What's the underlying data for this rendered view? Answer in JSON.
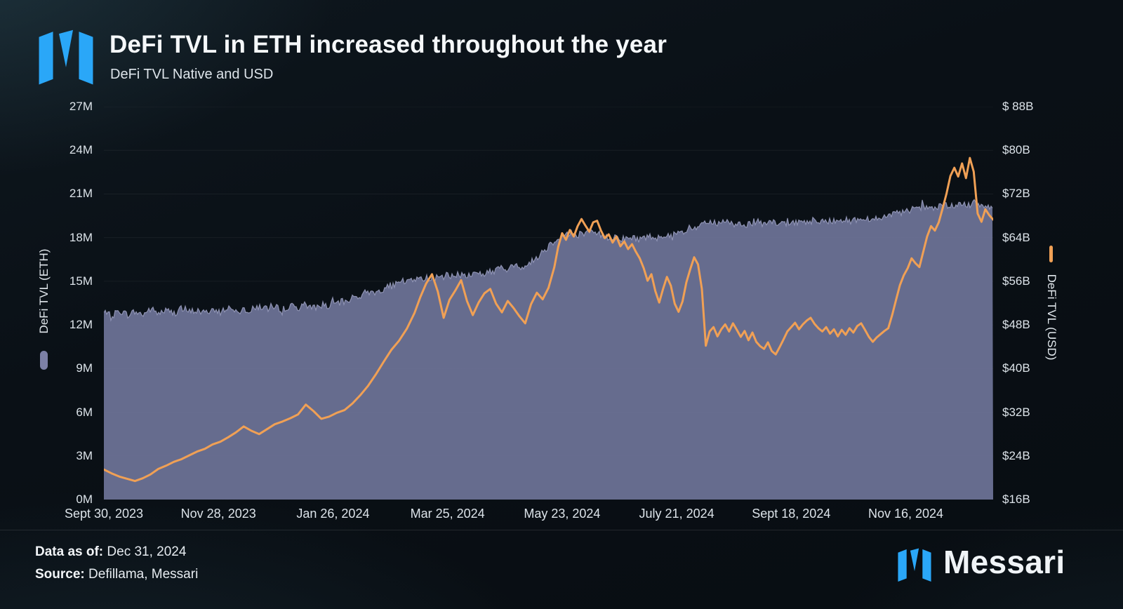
{
  "header": {
    "title": "DeFi TVL in ETH increased throughout the year",
    "subtitle": "DeFi TVL Native and USD"
  },
  "footer": {
    "data_as_of_label": "Data as of:",
    "data_as_of_value": " Dec 31, 2024",
    "source_label": "Source:",
    "source_value": " Defillama, Messari",
    "brand_wordmark": "Messari"
  },
  "colors": {
    "background": "#0a1016",
    "brand_blue": "#2aa7f8",
    "eth_area": "#6f7499",
    "eth_edge": "#a2a6c8",
    "usd_line": "#f0a055",
    "text": "#e9eef3"
  },
  "chart_data": {
    "type": "area+line, dual axis",
    "title": "DeFi TVL in ETH increased throughout the year",
    "subtitle": "DeFi TVL Native and USD",
    "grid": "horizontal, faint",
    "x_domain_days": [
      0,
      458
    ],
    "x_tick_days": [
      0,
      59,
      118,
      177,
      236,
      295,
      354,
      413
    ],
    "x_tick_labels": [
      "Sept 30, 2023",
      "Nov 28, 2023",
      "Jan 26, 2024",
      "Mar 25, 2024",
      "May 23, 2024",
      "July 21, 2024",
      "Sept 18, 2024",
      "Nov 16, 2024"
    ],
    "left_axis": {
      "label": "DeFi TVL (ETH)",
      "unit": "millions ETH",
      "min": 0,
      "max": 27,
      "ticks": [
        "27M",
        "24M",
        "21M",
        "18M",
        "15M",
        "12M",
        "9M",
        "6M",
        "3M",
        "0M"
      ]
    },
    "right_axis": {
      "label": "DeFi TVL (USD)",
      "unit": "billions USD",
      "min": 16,
      "max": 88,
      "ticks": [
        "$ 88B",
        "$80B",
        "$72B",
        "$64B",
        "$56B",
        "$48B",
        "$40B",
        "$32B",
        "$24B",
        "$16B"
      ]
    },
    "series": [
      {
        "name": "DeFi TVL (ETH)",
        "type": "area",
        "axis": "left",
        "color": "#6f7499",
        "edge_color": "#a2a6c8",
        "points": [
          [
            0,
            12.8
          ],
          [
            4,
            12.6
          ],
          [
            8,
            13.0
          ],
          [
            12,
            12.7
          ],
          [
            16,
            12.9
          ],
          [
            20,
            12.7
          ],
          [
            24,
            13.1
          ],
          [
            28,
            12.8
          ],
          [
            32,
            13.0
          ],
          [
            36,
            12.8
          ],
          [
            40,
            13.1
          ],
          [
            44,
            12.9
          ],
          [
            48,
            13.0
          ],
          [
            52,
            12.8
          ],
          [
            56,
            13.1
          ],
          [
            60,
            12.9
          ],
          [
            64,
            13.2
          ],
          [
            68,
            13.0
          ],
          [
            72,
            13.1
          ],
          [
            76,
            13.0
          ],
          [
            80,
            13.3
          ],
          [
            84,
            13.1
          ],
          [
            88,
            13.2
          ],
          [
            92,
            13.1
          ],
          [
            96,
            13.3
          ],
          [
            100,
            13.2
          ],
          [
            104,
            13.4
          ],
          [
            108,
            13.2
          ],
          [
            112,
            13.4
          ],
          [
            116,
            13.3
          ],
          [
            120,
            13.5
          ],
          [
            124,
            13.6
          ],
          [
            128,
            13.9
          ],
          [
            132,
            14.0
          ],
          [
            136,
            14.3
          ],
          [
            140,
            14.2
          ],
          [
            144,
            14.5
          ],
          [
            148,
            14.7
          ],
          [
            152,
            14.8
          ],
          [
            156,
            15.0
          ],
          [
            160,
            15.2
          ],
          [
            164,
            15.1
          ],
          [
            168,
            15.3
          ],
          [
            172,
            15.2
          ],
          [
            176,
            15.4
          ],
          [
            180,
            15.3
          ],
          [
            184,
            15.5
          ],
          [
            188,
            15.4
          ],
          [
            192,
            15.6
          ],
          [
            196,
            15.5
          ],
          [
            200,
            15.7
          ],
          [
            204,
            15.9
          ],
          [
            208,
            15.8
          ],
          [
            212,
            16.1
          ],
          [
            216,
            16.0
          ],
          [
            220,
            16.3
          ],
          [
            224,
            16.8
          ],
          [
            228,
            17.3
          ],
          [
            232,
            17.8
          ],
          [
            236,
            18.1
          ],
          [
            240,
            18.3
          ],
          [
            244,
            18.2
          ],
          [
            248,
            18.4
          ],
          [
            252,
            18.3
          ],
          [
            256,
            18.2
          ],
          [
            260,
            18.0
          ],
          [
            264,
            18.1
          ],
          [
            268,
            17.9
          ],
          [
            272,
            18.0
          ],
          [
            276,
            17.9
          ],
          [
            280,
            18.1
          ],
          [
            284,
            18.0
          ],
          [
            288,
            18.2
          ],
          [
            292,
            18.1
          ],
          [
            296,
            18.3
          ],
          [
            300,
            18.4
          ],
          [
            304,
            18.6
          ],
          [
            308,
            18.9
          ],
          [
            312,
            19.1
          ],
          [
            316,
            18.9
          ],
          [
            320,
            19.1
          ],
          [
            324,
            18.9
          ],
          [
            328,
            19.0
          ],
          [
            332,
            18.9
          ],
          [
            336,
            19.1
          ],
          [
            340,
            18.9
          ],
          [
            344,
            19.0
          ],
          [
            348,
            18.9
          ],
          [
            352,
            19.1
          ],
          [
            356,
            19.0
          ],
          [
            360,
            19.2
          ],
          [
            364,
            19.0
          ],
          [
            368,
            19.2
          ],
          [
            372,
            19.1
          ],
          [
            376,
            19.2
          ],
          [
            380,
            19.3
          ],
          [
            384,
            19.1
          ],
          [
            388,
            19.3
          ],
          [
            392,
            19.2
          ],
          [
            396,
            19.4
          ],
          [
            400,
            19.3
          ],
          [
            404,
            19.5
          ],
          [
            408,
            19.6
          ],
          [
            412,
            19.8
          ],
          [
            416,
            19.9
          ],
          [
            420,
            20.0
          ],
          [
            424,
            20.1
          ],
          [
            428,
            20.0
          ],
          [
            432,
            20.2
          ],
          [
            436,
            20.1
          ],
          [
            440,
            20.3
          ],
          [
            444,
            20.2
          ],
          [
            448,
            20.4
          ],
          [
            452,
            20.1
          ],
          [
            456,
            20.2
          ],
          [
            458,
            20.1
          ]
        ]
      },
      {
        "name": "DeFi TVL (USD)",
        "type": "line",
        "axis": "right",
        "color": "#f0a055",
        "points": [
          [
            0,
            21.5
          ],
          [
            4,
            20.8
          ],
          [
            8,
            20.2
          ],
          [
            12,
            19.8
          ],
          [
            16,
            19.4
          ],
          [
            20,
            19.9
          ],
          [
            24,
            20.6
          ],
          [
            28,
            21.6
          ],
          [
            32,
            22.2
          ],
          [
            36,
            22.9
          ],
          [
            40,
            23.4
          ],
          [
            44,
            24.1
          ],
          [
            48,
            24.8
          ],
          [
            52,
            25.3
          ],
          [
            56,
            26.1
          ],
          [
            60,
            26.6
          ],
          [
            64,
            27.4
          ],
          [
            68,
            28.3
          ],
          [
            72,
            29.4
          ],
          [
            76,
            28.6
          ],
          [
            80,
            28.0
          ],
          [
            84,
            28.9
          ],
          [
            88,
            29.8
          ],
          [
            92,
            30.3
          ],
          [
            96,
            30.9
          ],
          [
            100,
            31.6
          ],
          [
            104,
            33.4
          ],
          [
            108,
            32.2
          ],
          [
            112,
            30.8
          ],
          [
            116,
            31.2
          ],
          [
            120,
            31.9
          ],
          [
            124,
            32.4
          ],
          [
            128,
            33.6
          ],
          [
            132,
            35.1
          ],
          [
            136,
            36.8
          ],
          [
            140,
            38.9
          ],
          [
            144,
            41.2
          ],
          [
            148,
            43.4
          ],
          [
            152,
            45.1
          ],
          [
            156,
            47.3
          ],
          [
            160,
            50.2
          ],
          [
            163,
            53.1
          ],
          [
            166,
            55.6
          ],
          [
            169,
            57.3
          ],
          [
            172,
            54.1
          ],
          [
            175,
            49.3
          ],
          [
            178,
            52.6
          ],
          [
            181,
            54.3
          ],
          [
            184,
            56.2
          ],
          [
            187,
            52.4
          ],
          [
            190,
            49.8
          ],
          [
            193,
            52.1
          ],
          [
            196,
            53.8
          ],
          [
            199,
            54.6
          ],
          [
            202,
            51.9
          ],
          [
            205,
            50.3
          ],
          [
            208,
            52.4
          ],
          [
            211,
            51.1
          ],
          [
            214,
            49.6
          ],
          [
            217,
            48.3
          ],
          [
            220,
            51.8
          ],
          [
            223,
            53.9
          ],
          [
            226,
            52.7
          ],
          [
            229,
            54.8
          ],
          [
            232,
            58.6
          ],
          [
            234,
            62.3
          ],
          [
            236,
            64.8
          ],
          [
            238,
            63.6
          ],
          [
            240,
            65.4
          ],
          [
            242,
            64.2
          ],
          [
            244,
            66.1
          ],
          [
            246,
            67.4
          ],
          [
            248,
            66.2
          ],
          [
            250,
            65.1
          ],
          [
            252,
            66.8
          ],
          [
            254,
            67.1
          ],
          [
            256,
            65.3
          ],
          [
            258,
            63.9
          ],
          [
            260,
            64.6
          ],
          [
            262,
            63.1
          ],
          [
            264,
            64.2
          ],
          [
            266,
            62.4
          ],
          [
            268,
            63.3
          ],
          [
            270,
            61.9
          ],
          [
            272,
            62.8
          ],
          [
            274,
            61.4
          ],
          [
            276,
            60.2
          ],
          [
            278,
            58.4
          ],
          [
            280,
            56.1
          ],
          [
            282,
            57.3
          ],
          [
            284,
            54.2
          ],
          [
            286,
            52.1
          ],
          [
            288,
            54.6
          ],
          [
            290,
            56.8
          ],
          [
            292,
            55.2
          ],
          [
            294,
            51.9
          ],
          [
            296,
            50.4
          ],
          [
            298,
            52.3
          ],
          [
            300,
            55.8
          ],
          [
            302,
            58.2
          ],
          [
            304,
            60.4
          ],
          [
            306,
            59.1
          ],
          [
            308,
            54.6
          ],
          [
            310,
            44.2
          ],
          [
            312,
            46.8
          ],
          [
            314,
            47.6
          ],
          [
            316,
            45.9
          ],
          [
            318,
            47.2
          ],
          [
            320,
            48.1
          ],
          [
            322,
            46.8
          ],
          [
            324,
            48.3
          ],
          [
            326,
            47.1
          ],
          [
            328,
            45.8
          ],
          [
            330,
            46.9
          ],
          [
            332,
            45.2
          ],
          [
            334,
            46.6
          ],
          [
            336,
            44.9
          ],
          [
            338,
            44.1
          ],
          [
            340,
            43.6
          ],
          [
            342,
            44.8
          ],
          [
            344,
            43.2
          ],
          [
            346,
            42.6
          ],
          [
            348,
            43.9
          ],
          [
            350,
            45.3
          ],
          [
            352,
            46.8
          ],
          [
            354,
            47.6
          ],
          [
            356,
            48.4
          ],
          [
            358,
            47.2
          ],
          [
            360,
            48.1
          ],
          [
            362,
            48.8
          ],
          [
            364,
            49.3
          ],
          [
            366,
            48.2
          ],
          [
            368,
            47.4
          ],
          [
            370,
            46.8
          ],
          [
            372,
            47.6
          ],
          [
            374,
            46.4
          ],
          [
            376,
            47.2
          ],
          [
            378,
            45.9
          ],
          [
            380,
            47.1
          ],
          [
            382,
            46.2
          ],
          [
            384,
            47.4
          ],
          [
            386,
            46.6
          ],
          [
            388,
            47.8
          ],
          [
            390,
            48.3
          ],
          [
            392,
            47.1
          ],
          [
            394,
            45.8
          ],
          [
            396,
            44.9
          ],
          [
            398,
            45.7
          ],
          [
            400,
            46.3
          ],
          [
            402,
            46.9
          ],
          [
            404,
            47.4
          ],
          [
            406,
            49.8
          ],
          [
            408,
            52.6
          ],
          [
            410,
            55.3
          ],
          [
            412,
            57.1
          ],
          [
            414,
            58.4
          ],
          [
            416,
            60.2
          ],
          [
            418,
            59.3
          ],
          [
            420,
            58.6
          ],
          [
            422,
            61.4
          ],
          [
            424,
            64.2
          ],
          [
            426,
            66.1
          ],
          [
            428,
            65.3
          ],
          [
            430,
            66.8
          ],
          [
            432,
            69.4
          ],
          [
            434,
            72.1
          ],
          [
            436,
            75.3
          ],
          [
            438,
            76.8
          ],
          [
            440,
            75.2
          ],
          [
            442,
            77.6
          ],
          [
            444,
            74.9
          ],
          [
            446,
            78.6
          ],
          [
            448,
            76.1
          ],
          [
            450,
            68.4
          ],
          [
            452,
            66.9
          ],
          [
            454,
            69.2
          ],
          [
            456,
            68.1
          ],
          [
            458,
            67.3
          ]
        ]
      }
    ]
  }
}
